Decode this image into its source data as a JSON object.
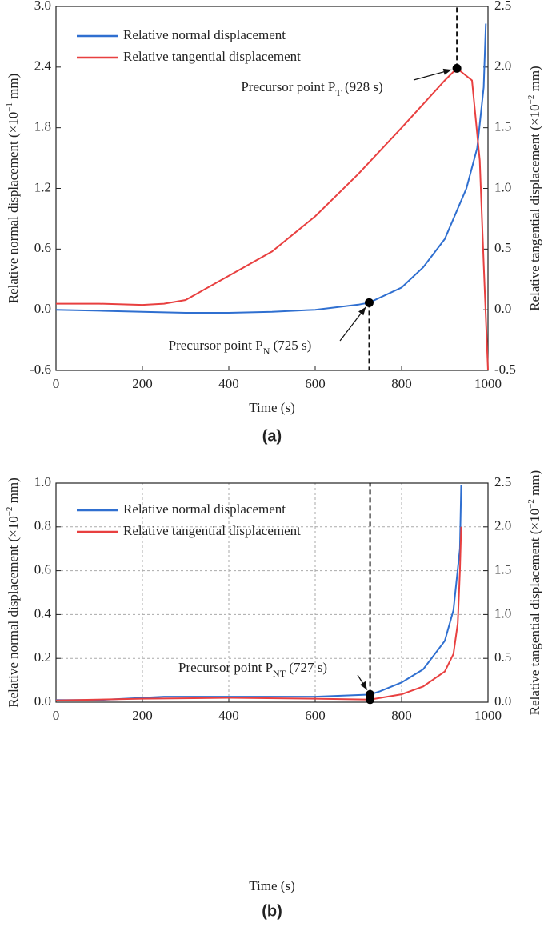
{
  "chart_data": [
    {
      "type": "line",
      "caption": "(a)",
      "x_label": "Time (s)",
      "y_label": {
        "text": "Relative normal displacement (×10",
        "sup": "−1",
        "suffix": " mm)"
      },
      "y2_label": {
        "text": "Relative tangential displacement (×10",
        "sup": "−2",
        "suffix": " mm)"
      },
      "xlim": [
        0,
        1000
      ],
      "xticks": [
        0,
        200,
        400,
        600,
        800,
        1000
      ],
      "ylim": [
        -0.6,
        3.0
      ],
      "yticks": [
        {
          "value": -0.6,
          "label": "-0.6"
        },
        {
          "value": 0,
          "label": "0.0"
        },
        0.6,
        1.2,
        1.8,
        2.4,
        {
          "value": 3,
          "label": "3.0"
        }
      ],
      "y2lim": [
        -0.5,
        2.5
      ],
      "y2ticks": [
        {
          "value": -0.5,
          "label": "-0.5"
        },
        {
          "value": 0,
          "label": "0.0"
        },
        0.5,
        {
          "value": 1,
          "label": "1.0"
        },
        1.5,
        {
          "value": 2,
          "label": "2.0"
        },
        2.5
      ],
      "grid": false,
      "series": [
        {
          "name": "Relative normal displacement",
          "color": "#2f6fd0",
          "axis": "y",
          "x": [
            0,
            100,
            200,
            300,
            400,
            500,
            600,
            700,
            725,
            800,
            850,
            900,
            950,
            975,
            990,
            995
          ],
          "values": [
            0,
            -0.01,
            -0.02,
            -0.03,
            -0.03,
            -0.02,
            0,
            0.05,
            0.07,
            0.22,
            0.42,
            0.7,
            1.2,
            1.6,
            2.2,
            2.83
          ]
        },
        {
          "name": "Relative tangential displacement",
          "color": "#e84040",
          "axis": "y2",
          "x": [
            0,
            100,
            200,
            250,
            300,
            400,
            500,
            600,
            700,
            800,
            900,
            928,
            963,
            981,
            990,
            1000
          ],
          "values": [
            0.05,
            0.05,
            0.04,
            0.05,
            0.08,
            0.28,
            0.48,
            0.77,
            1.12,
            1.5,
            1.89,
            1.99,
            1.89,
            1.23,
            0.38,
            -0.5
          ]
        }
      ],
      "annotations": [
        {
          "prefix": "Precursor point P",
          "sub": "N",
          "suffix": " (725 s)",
          "x": 725,
          "y": 0.07,
          "axis": "y"
        },
        {
          "prefix": "Precursor point P",
          "sub": "T",
          "suffix": " (928 s)",
          "x": 928,
          "y": 1.99,
          "axis": "y2"
        }
      ]
    },
    {
      "type": "line",
      "caption": "(b)",
      "x_label": "Time (s)",
      "y_label": {
        "text": "Relative normal displacement (×10",
        "sup": "−2",
        "suffix": " mm)"
      },
      "y2_label": {
        "text": "Relative tangential displacement (×10",
        "sup": "−2",
        "suffix": " mm)"
      },
      "xlim": [
        0,
        1000
      ],
      "xticks": [
        0,
        200,
        400,
        600,
        800,
        1000
      ],
      "ylim": [
        0,
        1.0
      ],
      "yticks": [
        {
          "value": 0,
          "label": "0.0"
        },
        0.2,
        0.4,
        0.6,
        0.8,
        {
          "value": 1,
          "label": "1.0"
        }
      ],
      "y2lim": [
        0,
        2.5
      ],
      "y2ticks": [
        {
          "value": 0,
          "label": "0.0"
        },
        0.5,
        {
          "value": 1,
          "label": "1.0"
        },
        1.5,
        {
          "value": 2,
          "label": "2.0"
        },
        2.5
      ],
      "grid": true,
      "series": [
        {
          "name": "Relative normal displacement",
          "color": "#2f6fd0",
          "axis": "y",
          "x": [
            0,
            100,
            200,
            250,
            400,
            600,
            700,
            727,
            750,
            800,
            850,
            900,
            920,
            935,
            938
          ],
          "values": [
            0.01,
            0.01,
            0.02,
            0.025,
            0.025,
            0.025,
            0.033,
            0.035,
            0.05,
            0.09,
            0.15,
            0.28,
            0.42,
            0.7,
            0.99
          ]
        },
        {
          "name": "Relative tangential displacement",
          "color": "#e84040",
          "axis": "y2",
          "x": [
            0,
            200,
            400,
            600,
            727,
            800,
            850,
            900,
            920,
            930,
            935,
            938
          ],
          "values": [
            0.02,
            0.04,
            0.05,
            0.04,
            0.03,
            0.09,
            0.18,
            0.35,
            0.55,
            0.9,
            1.5,
            2.0
          ]
        }
      ],
      "annotations": [
        {
          "prefix": "Precursor point P",
          "sub": "NT",
          "suffix": " (727 s)",
          "x": 727,
          "y": 0.035,
          "axis": "y"
        }
      ]
    }
  ]
}
